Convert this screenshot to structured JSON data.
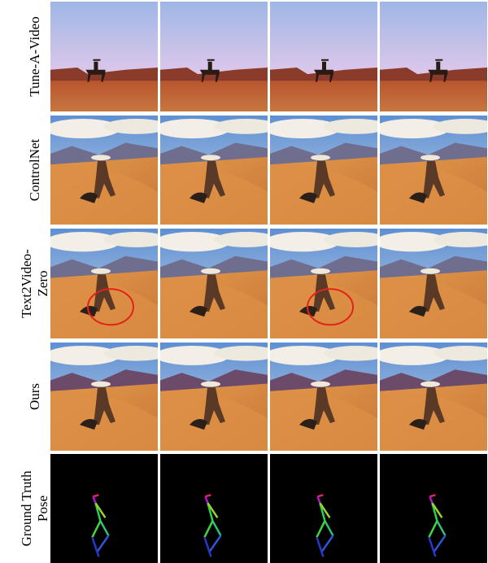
{
  "rows": [
    {
      "label": [
        "Tune-A-Video"
      ]
    },
    {
      "label": [
        "ControlNet"
      ]
    },
    {
      "label": [
        "Text2Video-",
        "Zero"
      ]
    },
    {
      "label": [
        "Ours"
      ]
    },
    {
      "label": [
        "Ground Truth",
        "Pose"
      ]
    }
  ]
}
